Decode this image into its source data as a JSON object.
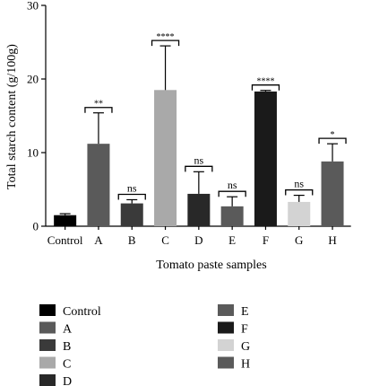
{
  "chart_data": {
    "type": "bar",
    "xlabel": "Tomato paste samples",
    "ylabel": "Total starch content (g/100g)",
    "ylim": [
      0,
      30
    ],
    "yticks": [
      0,
      10,
      20,
      30
    ],
    "grid": false,
    "legend_position": "bottom",
    "categories": [
      "Control",
      "A",
      "B",
      "C",
      "D",
      "E",
      "F",
      "G",
      "H"
    ],
    "values": [
      1.5,
      11.2,
      3.1,
      18.5,
      4.4,
      2.7,
      18.3,
      3.3,
      8.8
    ],
    "errors": [
      0.2,
      4.2,
      0.5,
      6.0,
      3.0,
      1.3,
      0.15,
      0.9,
      2.4
    ],
    "significance": [
      "",
      "**",
      "ns",
      "****",
      "ns",
      "ns",
      "****",
      "ns",
      "*"
    ],
    "colors": [
      "#000000",
      "#5a5a5a",
      "#3a3a3a",
      "#a9a9a9",
      "#282828",
      "#5a5a5a",
      "#1a1a1a",
      "#d3d3d3",
      "#5a5a5a"
    ],
    "legend": {
      "entries": [
        "Control",
        "A",
        "B",
        "C",
        "D",
        "E",
        "F",
        "G",
        "H"
      ]
    }
  }
}
